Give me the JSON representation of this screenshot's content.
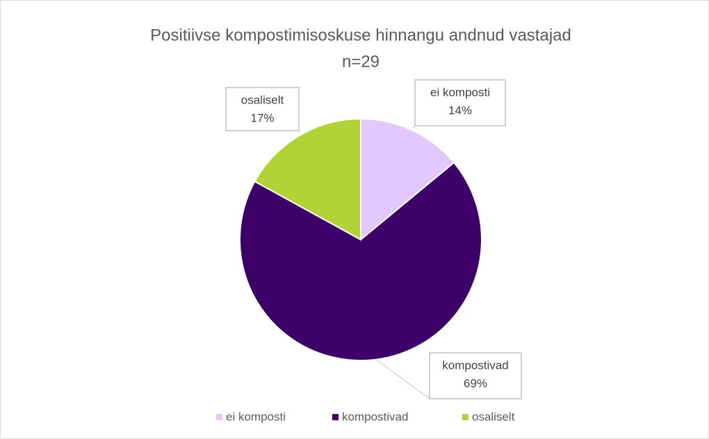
{
  "chart_data": {
    "type": "pie",
    "title": "Positiivse kompostimisoskuse hinnangu andnud vastajad",
    "subtitle": "n=29",
    "categories": [
      "ei komposti",
      "kompostivad",
      "osaliselt"
    ],
    "values": [
      14,
      69,
      17
    ],
    "value_labels": [
      "14%",
      "69%",
      "17%"
    ],
    "colors": [
      "#e2c8ff",
      "#3c0068",
      "#b2d235"
    ],
    "legend": "bottom"
  }
}
